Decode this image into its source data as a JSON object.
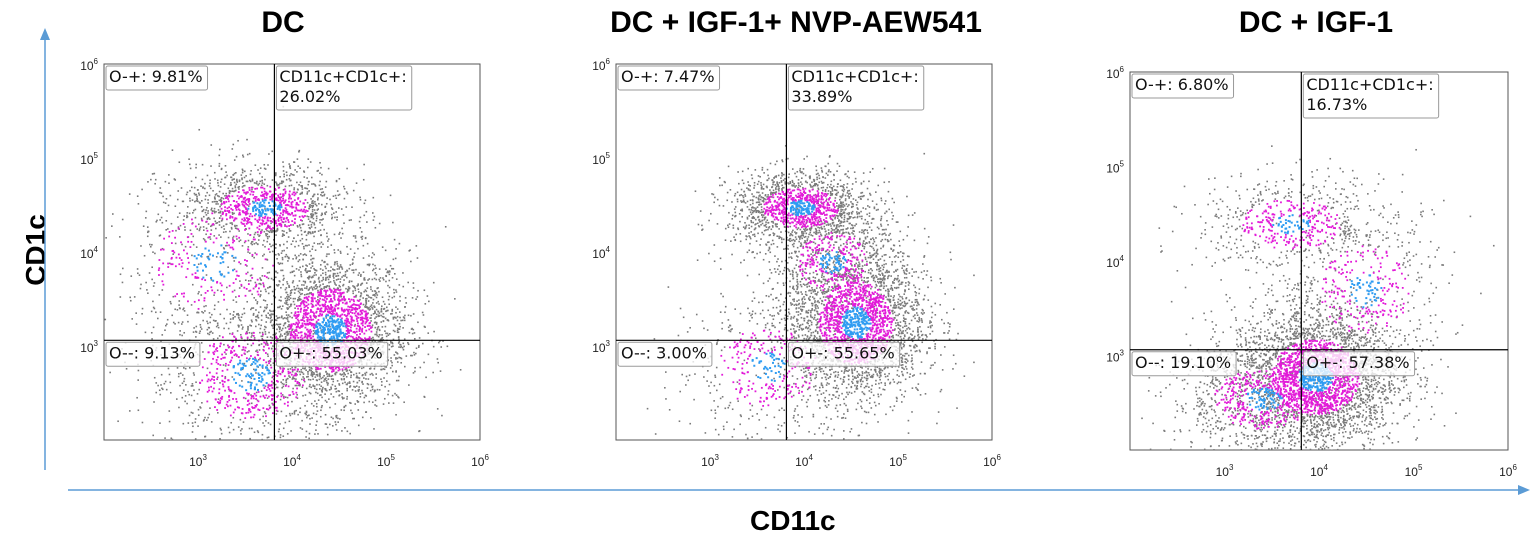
{
  "figure": {
    "x_label": "CD11c",
    "y_label": "CD1c",
    "colors": {
      "axis_arrow": "#5b9bd5",
      "dots_low": "#7a7a7a",
      "dots_mid": "#e21bd8",
      "dots_high": "#2f9cf2",
      "gate_line": "#000000"
    }
  },
  "chart_data": [
    {
      "type": "scatter",
      "title": "DC",
      "xlabel": "",
      "ylabel": "",
      "x_scale": "log",
      "y_scale": "log",
      "xlim": [
        100,
        1000000
      ],
      "ylim": [
        100,
        1000000
      ],
      "x_ticks": [
        "10",
        "10",
        "10",
        "10"
      ],
      "x_tick_exps": [
        "3",
        "4",
        "5",
        "6"
      ],
      "y_ticks": [
        "10",
        "10",
        "10",
        "10"
      ],
      "y_tick_exps": [
        "3",
        "4",
        "5",
        "6"
      ],
      "gate": {
        "x": 6500,
        "y": 1150
      },
      "quadrants": [
        {
          "label": "O-+: 9.81%"
        },
        {
          "label": "CD11c+CD1c+:",
          "value": "26.02%"
        },
        {
          "label": "O--: 9.13%"
        },
        {
          "label": "O+-: 55.03%"
        }
      ],
      "populations": [
        {
          "x": 25000,
          "y": 1500,
          "sx": 0.42,
          "sy": 0.42,
          "n": 2600
        },
        {
          "x": 5000,
          "y": 30000,
          "sx": 0.45,
          "sy": 0.22,
          "n": 1100
        },
        {
          "x": 3500,
          "y": 500,
          "sx": 0.55,
          "sy": 0.45,
          "n": 900
        },
        {
          "x": 1500,
          "y": 8000,
          "sx": 0.6,
          "sy": 0.5,
          "n": 500
        }
      ]
    },
    {
      "type": "scatter",
      "title": "DC + IGF-1+ NVP-AEW541",
      "xlabel": "",
      "ylabel": "",
      "x_scale": "log",
      "y_scale": "log",
      "xlim": [
        100,
        1000000
      ],
      "ylim": [
        100,
        1000000
      ],
      "x_ticks": [
        "10",
        "10",
        "10",
        "10"
      ],
      "x_tick_exps": [
        "3",
        "4",
        "5",
        "6"
      ],
      "y_ticks": [
        "10",
        "10",
        "10",
        "10"
      ],
      "y_tick_exps": [
        "3",
        "4",
        "5",
        "6"
      ],
      "gate": {
        "x": 6500,
        "y": 1150
      },
      "quadrants": [
        {
          "label": "O-+: 7.47%"
        },
        {
          "label": "CD11c+CD1c+:",
          "value": "33.89%"
        },
        {
          "label": "O--: 3.00%"
        },
        {
          "label": "O+-: 55.65%"
        }
      ],
      "populations": [
        {
          "x": 35000,
          "y": 1800,
          "sx": 0.38,
          "sy": 0.42,
          "n": 2700
        },
        {
          "x": 9000,
          "y": 30000,
          "sx": 0.38,
          "sy": 0.2,
          "n": 1400
        },
        {
          "x": 4000,
          "y": 600,
          "sx": 0.5,
          "sy": 0.4,
          "n": 500
        },
        {
          "x": 20000,
          "y": 8000,
          "sx": 0.35,
          "sy": 0.3,
          "n": 600
        }
      ]
    },
    {
      "type": "scatter",
      "title": "DC + IGF-1",
      "xlabel": "",
      "ylabel": "",
      "x_scale": "log",
      "y_scale": "log",
      "xlim": [
        100,
        1000000
      ],
      "ylim": [
        100,
        1000000
      ],
      "x_ticks": [
        "10",
        "10",
        "10",
        "10"
      ],
      "x_tick_exps": [
        "3",
        "4",
        "5",
        "6"
      ],
      "y_ticks": [
        "10",
        "10",
        "10",
        "10"
      ],
      "y_tick_exps": [
        "3",
        "4",
        "5",
        "6"
      ],
      "gate": {
        "x": 6500,
        "y": 1150
      },
      "quadrants": [
        {
          "label": "O-+: 6.80%"
        },
        {
          "label": "CD11c+CD1c+:",
          "value": "16.73%"
        },
        {
          "label": "O--: 19.10%"
        },
        {
          "label": "O+-: 57.38%"
        }
      ],
      "populations": [
        {
          "x": 9000,
          "y": 600,
          "sx": 0.45,
          "sy": 0.38,
          "n": 3000
        },
        {
          "x": 5000,
          "y": 25000,
          "sx": 0.5,
          "sy": 0.25,
          "n": 600
        },
        {
          "x": 2500,
          "y": 350,
          "sx": 0.5,
          "sy": 0.3,
          "n": 900
        },
        {
          "x": 30000,
          "y": 5000,
          "sx": 0.45,
          "sy": 0.45,
          "n": 500
        }
      ]
    }
  ]
}
